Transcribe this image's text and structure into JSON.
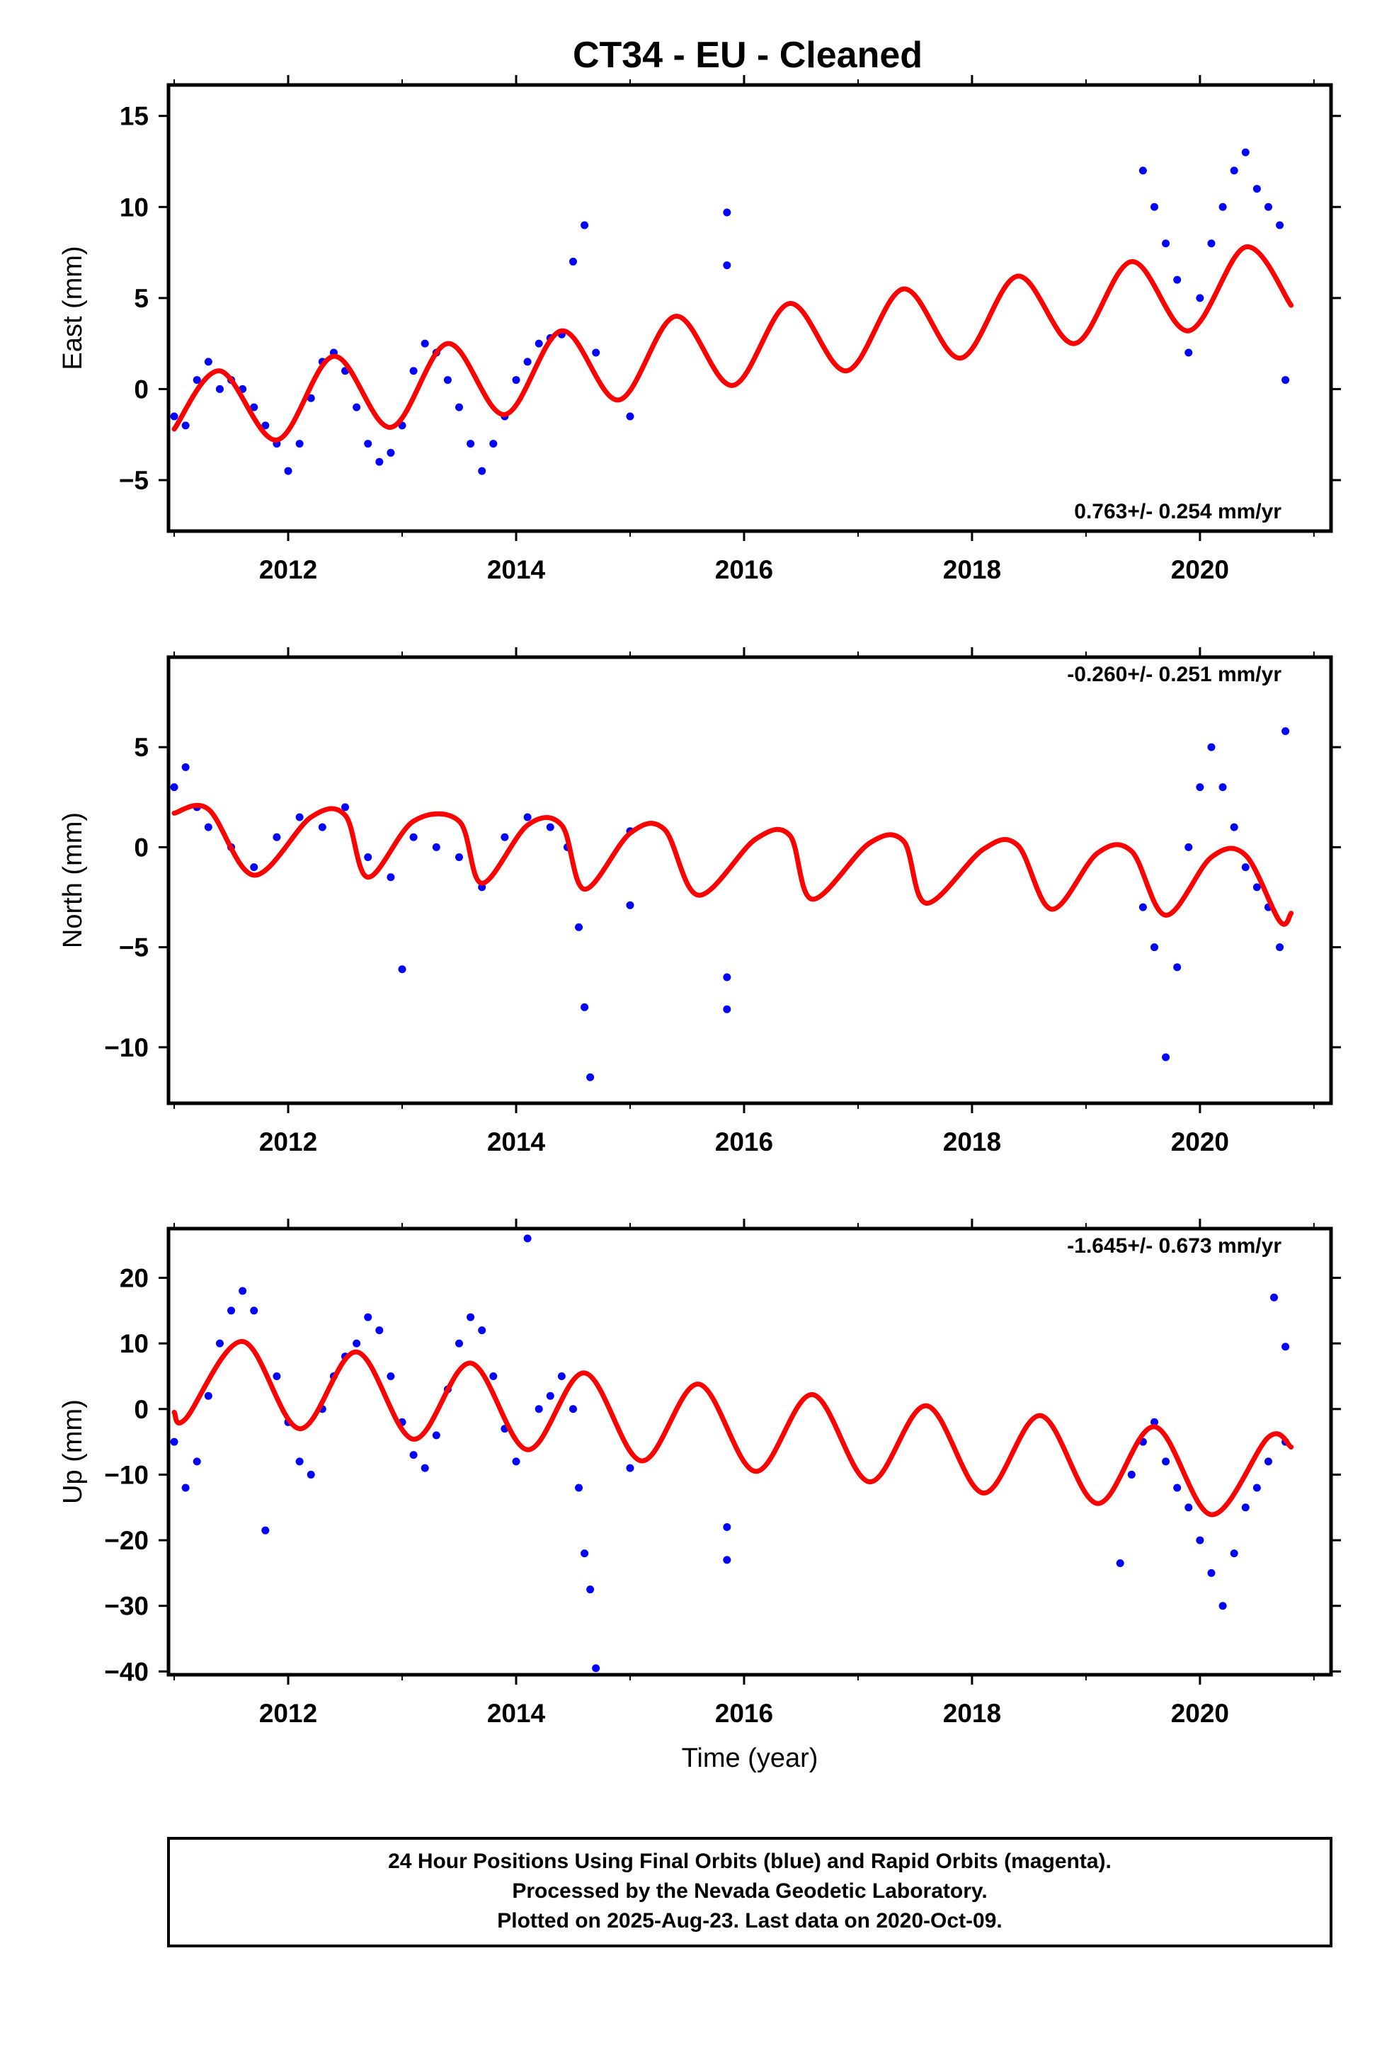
{
  "title": "CT34  - EU - Cleaned",
  "chart_data": [
    {
      "type": "scatter",
      "panel": "east",
      "ylabel": "East (mm)",
      "ylim": [
        -7.8,
        16.7
      ],
      "yticks": [
        -5,
        0,
        5,
        10,
        15
      ],
      "yticklabels": [
        "−5",
        "0",
        "5",
        "10",
        "15"
      ],
      "xlim": [
        2010.95,
        2021.15
      ],
      "xticks": [
        2012,
        2014,
        2016,
        2018,
        2020
      ],
      "xticklabels": [
        "2012",
        "2014",
        "2016",
        "2018",
        "2020"
      ],
      "xlabel": "",
      "rate_text": "0.763+/- 0.254 mm/yr",
      "rate_position": "bottom-right",
      "point_color": "#0000ff",
      "model_color": "#ff0000",
      "points": [
        [
          2011.0,
          -1.5
        ],
        [
          2011.1,
          -2.0
        ],
        [
          2011.2,
          0.5
        ],
        [
          2011.3,
          1.5
        ],
        [
          2011.4,
          0.0
        ],
        [
          2011.5,
          0.5
        ],
        [
          2011.6,
          0.0
        ],
        [
          2011.7,
          -1.0
        ],
        [
          2011.8,
          -2.0
        ],
        [
          2011.9,
          -3.0
        ],
        [
          2012.0,
          -4.5
        ],
        [
          2012.1,
          -3.0
        ],
        [
          2012.2,
          -0.5
        ],
        [
          2012.3,
          1.5
        ],
        [
          2012.4,
          2.0
        ],
        [
          2012.5,
          1.0
        ],
        [
          2012.6,
          -1.0
        ],
        [
          2012.7,
          -3.0
        ],
        [
          2012.8,
          -4.0
        ],
        [
          2012.9,
          -3.5
        ],
        [
          2013.0,
          -2.0
        ],
        [
          2013.1,
          1.0
        ],
        [
          2013.2,
          2.5
        ],
        [
          2013.3,
          2.0
        ],
        [
          2013.4,
          0.5
        ],
        [
          2013.5,
          -1.0
        ],
        [
          2013.6,
          -3.0
        ],
        [
          2013.7,
          -4.5
        ],
        [
          2013.8,
          -3.0
        ],
        [
          2013.9,
          -1.5
        ],
        [
          2014.0,
          0.5
        ],
        [
          2014.1,
          1.5
        ],
        [
          2014.2,
          2.5
        ],
        [
          2014.3,
          2.8
        ],
        [
          2014.4,
          3.0
        ],
        [
          2014.5,
          7.0
        ],
        [
          2014.6,
          9.0
        ],
        [
          2014.7,
          2.0
        ],
        [
          2015.0,
          -1.5
        ],
        [
          2015.85,
          9.7
        ],
        [
          2015.85,
          6.8
        ],
        [
          2019.5,
          12.0
        ],
        [
          2019.6,
          10.0
        ],
        [
          2019.7,
          8.0
        ],
        [
          2019.8,
          6.0
        ],
        [
          2019.9,
          2.0
        ],
        [
          2020.0,
          5.0
        ],
        [
          2020.1,
          8.0
        ],
        [
          2020.2,
          10.0
        ],
        [
          2020.3,
          12.0
        ],
        [
          2020.4,
          13.0
        ],
        [
          2020.5,
          11.0
        ],
        [
          2020.6,
          10.0
        ],
        [
          2020.7,
          9.0
        ],
        [
          2020.75,
          0.5
        ]
      ],
      "model": [
        [
          2011.0,
          -2.2
        ],
        [
          2011.4,
          1.0
        ],
        [
          2011.9,
          -2.8
        ],
        [
          2012.4,
          1.8
        ],
        [
          2012.9,
          -2.1
        ],
        [
          2013.4,
          2.5
        ],
        [
          2013.9,
          -1.4
        ],
        [
          2014.4,
          3.2
        ],
        [
          2014.9,
          -0.6
        ],
        [
          2015.4,
          4.0
        ],
        [
          2015.9,
          0.2
        ],
        [
          2016.4,
          4.7
        ],
        [
          2016.9,
          1.0
        ],
        [
          2017.4,
          5.5
        ],
        [
          2017.9,
          1.7
        ],
        [
          2018.4,
          6.2
        ],
        [
          2018.9,
          2.5
        ],
        [
          2019.4,
          7.0
        ],
        [
          2019.9,
          3.2
        ],
        [
          2020.4,
          7.8
        ],
        [
          2020.8,
          4.6
        ]
      ]
    },
    {
      "type": "scatter",
      "panel": "north",
      "ylabel": "North (mm)",
      "ylim": [
        -12.8,
        9.5
      ],
      "yticks": [
        -10,
        -5,
        0,
        5
      ],
      "yticklabels": [
        "−10",
        "−5",
        "0",
        "5"
      ],
      "xlim": [
        2010.95,
        2021.15
      ],
      "xticks": [
        2012,
        2014,
        2016,
        2018,
        2020
      ],
      "xticklabels": [
        "2012",
        "2014",
        "2016",
        "2018",
        "2020"
      ],
      "xlabel": "",
      "rate_text": "-0.260+/- 0.251 mm/yr",
      "rate_position": "top-right",
      "point_color": "#0000ff",
      "model_color": "#ff0000",
      "points": [
        [
          2011.0,
          3.0
        ],
        [
          2011.1,
          4.0
        ],
        [
          2011.2,
          2.0
        ],
        [
          2011.3,
          1.0
        ],
        [
          2011.5,
          0.0
        ],
        [
          2011.7,
          -1.0
        ],
        [
          2011.9,
          0.5
        ],
        [
          2012.1,
          1.5
        ],
        [
          2012.3,
          1.0
        ],
        [
          2012.5,
          2.0
        ],
        [
          2012.7,
          -0.5
        ],
        [
          2012.9,
          -1.5
        ],
        [
          2013.0,
          -6.1
        ],
        [
          2013.1,
          0.5
        ],
        [
          2013.3,
          0.0
        ],
        [
          2013.5,
          -0.5
        ],
        [
          2013.7,
          -2.0
        ],
        [
          2013.9,
          0.5
        ],
        [
          2014.1,
          1.5
        ],
        [
          2014.3,
          1.0
        ],
        [
          2014.45,
          0.0
        ],
        [
          2014.55,
          -4.0
        ],
        [
          2014.6,
          -8.0
        ],
        [
          2014.65,
          -11.5
        ],
        [
          2015.0,
          0.8
        ],
        [
          2015.0,
          -2.9
        ],
        [
          2015.85,
          -6.5
        ],
        [
          2015.85,
          -8.1
        ],
        [
          2019.5,
          -3.0
        ],
        [
          2019.6,
          -5.0
        ],
        [
          2019.7,
          -10.5
        ],
        [
          2019.8,
          -6.0
        ],
        [
          2019.9,
          0.0
        ],
        [
          2020.0,
          3.0
        ],
        [
          2020.1,
          5.0
        ],
        [
          2020.2,
          3.0
        ],
        [
          2020.3,
          1.0
        ],
        [
          2020.4,
          -1.0
        ],
        [
          2020.5,
          -2.0
        ],
        [
          2020.6,
          -3.0
        ],
        [
          2020.7,
          -5.0
        ],
        [
          2020.75,
          5.8
        ]
      ],
      "model": [
        [
          2011.0,
          1.7
        ],
        [
          2011.3,
          1.9
        ],
        [
          2011.7,
          -1.4
        ],
        [
          2012.2,
          1.5
        ],
        [
          2012.5,
          1.6
        ],
        [
          2012.7,
          -1.5
        ],
        [
          2013.1,
          1.3
        ],
        [
          2013.5,
          1.3
        ],
        [
          2013.7,
          -1.8
        ],
        [
          2014.1,
          1.1
        ],
        [
          2014.4,
          1.1
        ],
        [
          2014.6,
          -2.1
        ],
        [
          2015.0,
          0.7
        ],
        [
          2015.3,
          0.9
        ],
        [
          2015.6,
          -2.4
        ],
        [
          2016.1,
          0.4
        ],
        [
          2016.4,
          0.6
        ],
        [
          2016.6,
          -2.6
        ],
        [
          2017.1,
          0.2
        ],
        [
          2017.4,
          0.3
        ],
        [
          2017.6,
          -2.8
        ],
        [
          2018.1,
          -0.1
        ],
        [
          2018.4,
          0.1
        ],
        [
          2018.7,
          -3.1
        ],
        [
          2019.1,
          -0.3
        ],
        [
          2019.4,
          -0.2
        ],
        [
          2019.7,
          -3.4
        ],
        [
          2020.1,
          -0.5
        ],
        [
          2020.4,
          -0.4
        ],
        [
          2020.7,
          -3.7
        ],
        [
          2020.8,
          -3.3
        ]
      ]
    },
    {
      "type": "scatter",
      "panel": "up",
      "ylabel": "Up (mm)",
      "ylim": [
        -40.5,
        27.5
      ],
      "yticks": [
        -40,
        -30,
        -20,
        -10,
        0,
        10,
        20
      ],
      "yticklabels": [
        "−40",
        "−30",
        "−20",
        "−10",
        "0",
        "10",
        "20"
      ],
      "xlim": [
        2010.95,
        2021.15
      ],
      "xticks": [
        2012,
        2014,
        2016,
        2018,
        2020
      ],
      "xticklabels": [
        "2012",
        "2014",
        "2016",
        "2018",
        "2020"
      ],
      "xlabel": "Time (year)",
      "rate_text": "-1.645+/- 0.673 mm/yr",
      "rate_position": "top-right",
      "point_color": "#0000ff",
      "model_color": "#ff0000",
      "points": [
        [
          2011.0,
          -5.0
        ],
        [
          2011.1,
          -12.0
        ],
        [
          2011.2,
          -8.0
        ],
        [
          2011.3,
          2.0
        ],
        [
          2011.4,
          10.0
        ],
        [
          2011.5,
          15.0
        ],
        [
          2011.6,
          18.0
        ],
        [
          2011.7,
          15.0
        ],
        [
          2011.8,
          -18.5
        ],
        [
          2011.9,
          5.0
        ],
        [
          2012.0,
          -2.0
        ],
        [
          2012.1,
          -8.0
        ],
        [
          2012.2,
          -10.0
        ],
        [
          2012.3,
          0.0
        ],
        [
          2012.4,
          5.0
        ],
        [
          2012.5,
          8.0
        ],
        [
          2012.6,
          10.0
        ],
        [
          2012.7,
          14.0
        ],
        [
          2012.8,
          12.0
        ],
        [
          2012.9,
          5.0
        ],
        [
          2013.0,
          -2.0
        ],
        [
          2013.1,
          -7.0
        ],
        [
          2013.2,
          -9.0
        ],
        [
          2013.3,
          -4.0
        ],
        [
          2013.4,
          3.0
        ],
        [
          2013.5,
          10.0
        ],
        [
          2013.6,
          14.0
        ],
        [
          2013.7,
          12.0
        ],
        [
          2013.8,
          5.0
        ],
        [
          2013.9,
          -3.0
        ],
        [
          2014.0,
          -8.0
        ],
        [
          2014.1,
          26.0
        ],
        [
          2014.2,
          0.0
        ],
        [
          2014.3,
          2.0
        ],
        [
          2014.4,
          5.0
        ],
        [
          2014.5,
          0.0
        ],
        [
          2014.55,
          -12.0
        ],
        [
          2014.6,
          -22.0
        ],
        [
          2014.65,
          -27.5
        ],
        [
          2014.7,
          -39.5
        ],
        [
          2015.0,
          -9.0
        ],
        [
          2015.85,
          -18.0
        ],
        [
          2015.85,
          -23.0
        ],
        [
          2019.3,
          -23.5
        ],
        [
          2019.4,
          -10.0
        ],
        [
          2019.5,
          -5.0
        ],
        [
          2019.6,
          -2.0
        ],
        [
          2019.7,
          -8.0
        ],
        [
          2019.8,
          -12.0
        ],
        [
          2019.9,
          -15.0
        ],
        [
          2020.0,
          -20.0
        ],
        [
          2020.1,
          -25.0
        ],
        [
          2020.2,
          -30.0
        ],
        [
          2020.3,
          -22.0
        ],
        [
          2020.4,
          -15.0
        ],
        [
          2020.5,
          -12.0
        ],
        [
          2020.6,
          -8.0
        ],
        [
          2020.65,
          17.0
        ],
        [
          2020.75,
          -5.0
        ],
        [
          2020.75,
          9.5
        ]
      ],
      "model": [
        [
          2011.0,
          -0.5
        ],
        [
          2011.1,
          -1.5
        ],
        [
          2011.6,
          10.3
        ],
        [
          2012.1,
          -3.0
        ],
        [
          2012.6,
          8.7
        ],
        [
          2013.1,
          -4.6
        ],
        [
          2013.6,
          7.0
        ],
        [
          2014.1,
          -6.2
        ],
        [
          2014.6,
          5.5
        ],
        [
          2015.1,
          -7.9
        ],
        [
          2015.6,
          3.8
        ],
        [
          2016.1,
          -9.5
        ],
        [
          2016.6,
          2.2
        ],
        [
          2017.1,
          -11.1
        ],
        [
          2017.6,
          0.5
        ],
        [
          2018.1,
          -12.8
        ],
        [
          2018.6,
          -1.0
        ],
        [
          2019.1,
          -14.4
        ],
        [
          2019.6,
          -2.7
        ],
        [
          2020.1,
          -16.1
        ],
        [
          2020.6,
          -4.3
        ],
        [
          2020.8,
          -5.8
        ]
      ]
    }
  ],
  "footer": {
    "line1": "24 Hour Positions Using Final Orbits (blue) and Rapid Orbits (magenta).",
    "line2": "Processed by the Nevada Geodetic Laboratory.",
    "line3": "Plotted on 2025-Aug-23. Last data on 2020-Oct-09."
  }
}
